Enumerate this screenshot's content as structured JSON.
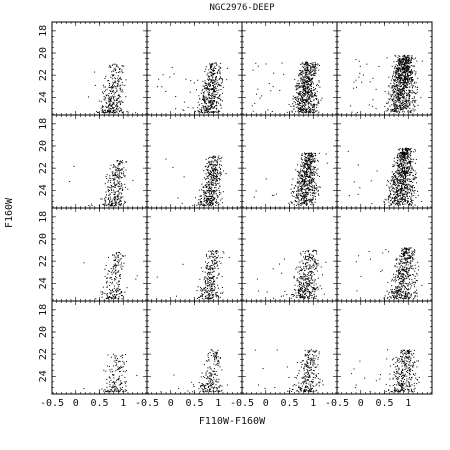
{
  "chart_data": {
    "type": "scatter",
    "title": "NGC2976-DEEP",
    "xlabel": "F110W-F160W",
    "ylabel": "F160W",
    "xlim": [
      -0.5,
      1.5
    ],
    "ylim": [
      25.6,
      17.2
    ],
    "y_inverted": true,
    "layout": "4x4 grid of panels",
    "grid": false,
    "x_tick_labels": [
      "-0.5",
      "0",
      "0.5",
      "1"
    ],
    "y_tick_labels": [
      "18",
      "20",
      "22",
      "24"
    ],
    "panels": [
      {
        "id": "r1c1",
        "n_points": 300,
        "color_center": 0.75,
        "color_spread": 0.22,
        "tip_mag": 21.0,
        "faint_mag": 25.4,
        "concentration": 1.6
      },
      {
        "id": "r1c2",
        "n_points": 450,
        "color_center": 0.8,
        "color_spread": 0.22,
        "tip_mag": 20.9,
        "faint_mag": 25.4,
        "concentration": 1.3
      },
      {
        "id": "r1c3",
        "n_points": 650,
        "color_center": 0.8,
        "color_spread": 0.24,
        "tip_mag": 20.8,
        "faint_mag": 25.4,
        "concentration": 1.1
      },
      {
        "id": "r1c4",
        "n_points": 950,
        "color_center": 0.82,
        "color_spread": 0.26,
        "tip_mag": 20.2,
        "faint_mag": 25.4,
        "concentration": 0.9
      },
      {
        "id": "r2c1",
        "n_points": 280,
        "color_center": 0.78,
        "color_spread": 0.22,
        "tip_mag": 21.3,
        "faint_mag": 25.4,
        "concentration": 1.6
      },
      {
        "id": "r2c2",
        "n_points": 420,
        "color_center": 0.8,
        "color_spread": 0.22,
        "tip_mag": 20.9,
        "faint_mag": 25.4,
        "concentration": 1.3
      },
      {
        "id": "r2c3",
        "n_points": 600,
        "color_center": 0.8,
        "color_spread": 0.24,
        "tip_mag": 20.6,
        "faint_mag": 25.4,
        "concentration": 1.1
      },
      {
        "id": "r2c4",
        "n_points": 800,
        "color_center": 0.82,
        "color_spread": 0.25,
        "tip_mag": 20.2,
        "faint_mag": 25.4,
        "concentration": 1.0
      },
      {
        "id": "r3c1",
        "n_points": 200,
        "color_center": 0.78,
        "color_spread": 0.22,
        "tip_mag": 21.2,
        "faint_mag": 25.4,
        "concentration": 1.7
      },
      {
        "id": "r3c2",
        "n_points": 280,
        "color_center": 0.8,
        "color_spread": 0.22,
        "tip_mag": 21.0,
        "faint_mag": 25.4,
        "concentration": 1.5
      },
      {
        "id": "r3c3",
        "n_points": 380,
        "color_center": 0.82,
        "color_spread": 0.24,
        "tip_mag": 21.0,
        "faint_mag": 25.4,
        "concentration": 1.3
      },
      {
        "id": "r3c4",
        "n_points": 480,
        "color_center": 0.85,
        "color_spread": 0.25,
        "tip_mag": 20.8,
        "faint_mag": 25.4,
        "concentration": 1.2
      },
      {
        "id": "r4c1",
        "n_points": 150,
        "color_center": 0.8,
        "color_spread": 0.22,
        "tip_mag": 22.0,
        "faint_mag": 25.4,
        "concentration": 1.8
      },
      {
        "id": "r4c2",
        "n_points": 200,
        "color_center": 0.82,
        "color_spread": 0.22,
        "tip_mag": 21.6,
        "faint_mag": 25.4,
        "concentration": 1.7
      },
      {
        "id": "r4c3",
        "n_points": 260,
        "color_center": 0.84,
        "color_spread": 0.24,
        "tip_mag": 21.6,
        "faint_mag": 25.4,
        "concentration": 1.5
      },
      {
        "id": "r4c4",
        "n_points": 320,
        "color_center": 0.86,
        "color_spread": 0.25,
        "tip_mag": 21.6,
        "faint_mag": 25.4,
        "concentration": 1.4
      }
    ]
  },
  "colors": {
    "points": "#000000",
    "frame": "#000000",
    "background": "#ffffff"
  }
}
